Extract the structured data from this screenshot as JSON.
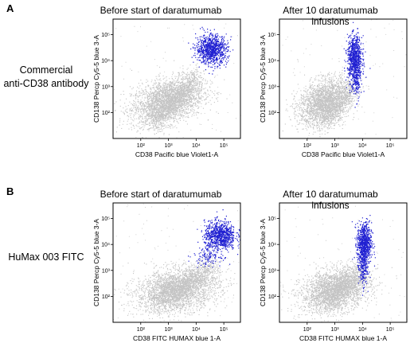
{
  "panels": [
    {
      "letter": "A",
      "row_label_lines": [
        "Commercial",
        "anti-CD38 antibody"
      ],
      "plots": [
        {
          "title": "Before start of daratumumab",
          "xlabel": "CD38 Pacific blue Violet1-A",
          "ylabel": "CD138 Percp Cy5-5 blue 3-A",
          "xticks": [
            {
              "label": "10²",
              "e": 2
            },
            {
              "label": "10³",
              "e": 3
            },
            {
              "label": "10⁴",
              "e": 4
            },
            {
              "label": "10⁵",
              "e": 5
            }
          ],
          "yticks": [
            {
              "label": "10²",
              "e": 2
            },
            {
              "label": "10³",
              "e": 3
            },
            {
              "label": "10⁴",
              "e": 4
            },
            {
              "label": "10⁵",
              "e": 5
            }
          ],
          "gray": {
            "cx": 2.95,
            "cy": 2.45,
            "sx": 0.65,
            "sy": 0.45,
            "n": 2600,
            "rho": 0.35,
            "tail": {
              "x0": 2.4,
              "y0": 1.6,
              "x1": 4.0,
              "y1": 3.4,
              "n": 900
            }
          },
          "blue": [
            {
              "cx": 4.55,
              "cy": 4.45,
              "sx": 0.28,
              "sy": 0.28,
              "n": 900
            }
          ]
        },
        {
          "title": "After 10 daratumumab infusions",
          "xlabel": "CD38 Pacific blue Violet1-A",
          "ylabel": "CD138 Percp Cy5-5 blue 3-A",
          "xticks": [
            {
              "label": "10²",
              "e": 2
            },
            {
              "label": "10³",
              "e": 3
            },
            {
              "label": "10⁴",
              "e": 4
            },
            {
              "label": "10⁵",
              "e": 5
            }
          ],
          "yticks": [
            {
              "label": "10²",
              "e": 2
            },
            {
              "label": "10³",
              "e": 3
            },
            {
              "label": "10⁴",
              "e": 4
            },
            {
              "label": "10⁵",
              "e": 5
            }
          ],
          "gray": {
            "cx": 2.6,
            "cy": 2.4,
            "sx": 0.45,
            "sy": 0.45,
            "n": 2300,
            "rho": 0.3,
            "tail": {
              "x0": 2.6,
              "y0": 1.6,
              "x1": 3.6,
              "y1": 3.0,
              "n": 600
            }
          },
          "blue": [
            {
              "cx": 3.7,
              "cy": 4.1,
              "sx": 0.13,
              "sy": 0.42,
              "n": 800
            },
            {
              "cx": 3.75,
              "cy": 3.2,
              "sx": 0.08,
              "sy": 0.35,
              "n": 150
            }
          ]
        }
      ]
    },
    {
      "letter": "B",
      "row_label_lines": [
        "HuMax 003 FITC"
      ],
      "plots": [
        {
          "title": "Before start of daratumumab",
          "xlabel": "CD38 FITC HUMAX blue 1-A",
          "ylabel": "CD138 Percp Cy5-5 blue 3-A",
          "xticks": [
            {
              "label": "10²",
              "e": 2
            },
            {
              "label": "10³",
              "e": 3
            },
            {
              "label": "10⁴",
              "e": 4
            },
            {
              "label": "10⁵",
              "e": 5
            }
          ],
          "yticks": [
            {
              "label": "10²",
              "e": 2
            },
            {
              "label": "10³",
              "e": 3
            },
            {
              "label": "10⁴",
              "e": 4
            },
            {
              "label": "10⁵",
              "e": 5
            }
          ],
          "gray": {
            "cx": 3.3,
            "cy": 2.25,
            "sx": 0.75,
            "sy": 0.42,
            "n": 2700,
            "rho": 0.25,
            "tail": {
              "x0": 2.6,
              "y0": 1.8,
              "x1": 4.6,
              "y1": 3.2,
              "n": 900
            }
          },
          "blue": [
            {
              "cx": 4.85,
              "cy": 4.35,
              "sx": 0.28,
              "sy": 0.28,
              "n": 850
            },
            {
              "cx": 4.4,
              "cy": 3.6,
              "sx": 0.25,
              "sy": 0.2,
              "n": 120
            }
          ]
        },
        {
          "title": "After 10 daratumumab infusions",
          "xlabel": "CD38 FITC HUMAX blue 1-A",
          "ylabel": "CD138 Percp Cy5-5 blue 3-A",
          "xticks": [
            {
              "label": "10²",
              "e": 2
            },
            {
              "label": "10³",
              "e": 3
            },
            {
              "label": "10⁴",
              "e": 4
            },
            {
              "label": "10⁵",
              "e": 5
            }
          ],
          "yticks": [
            {
              "label": "10²",
              "e": 2
            },
            {
              "label": "10³",
              "e": 3
            },
            {
              "label": "10⁴",
              "e": 4
            },
            {
              "label": "10⁵",
              "e": 5
            }
          ],
          "gray": {
            "cx": 3.0,
            "cy": 2.25,
            "sx": 0.62,
            "sy": 0.42,
            "n": 2500,
            "rho": 0.28,
            "tail": {
              "x0": 2.6,
              "y0": 1.8,
              "x1": 3.9,
              "y1": 3.0,
              "n": 700
            }
          },
          "blue": [
            {
              "cx": 4.05,
              "cy": 4.05,
              "sx": 0.13,
              "sy": 0.4,
              "n": 750
            },
            {
              "cx": 4.0,
              "cy": 3.1,
              "sx": 0.08,
              "sy": 0.35,
              "n": 180
            }
          ]
        }
      ]
    }
  ],
  "colors": {
    "gray": "#c4c4c4",
    "blue": "#1f1fd1",
    "frame": "#000000"
  }
}
